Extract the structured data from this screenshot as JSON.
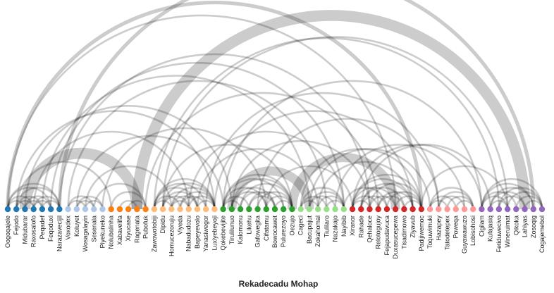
{
  "title": "Rekadecadu Mohap",
  "colors": {
    "background": "#ffffff",
    "link": "#000000",
    "groups": [
      "#1f77b4",
      "#aec7e8",
      "#ff7f0e",
      "#ffbb78",
      "#2ca02c",
      "#98df8a",
      "#d62728",
      "#ff9896",
      "#9467bd"
    ]
  },
  "chart_data": {
    "type": "arc",
    "nodes": [
      {
        "name": "Oogoqajele",
        "group": 0
      },
      {
        "name": "Fejodo",
        "group": 0
      },
      {
        "name": "Midubarar",
        "group": 0
      },
      {
        "name": "Raxosalofo",
        "group": 0
      },
      {
        "name": "Peqadef",
        "group": 0
      },
      {
        "name": "Feqoduxi",
        "group": 0
      },
      {
        "name": "Narazavecijil",
        "group": 0
      },
      {
        "name": "Voxodex",
        "group": 1
      },
      {
        "name": "Koluyet",
        "group": 1
      },
      {
        "name": "Wosagalayin",
        "group": 1
      },
      {
        "name": "Sesenala",
        "group": 1
      },
      {
        "name": "Piyekuneko",
        "group": 1
      },
      {
        "name": "Nolubalinha",
        "group": 2
      },
      {
        "name": "Xabavelifa",
        "group": 2
      },
      {
        "name": "Xiyucase",
        "group": 2
      },
      {
        "name": "Ragenata",
        "group": 2
      },
      {
        "name": "Pubofuk",
        "group": 2
      },
      {
        "name": "Zawowotobiji",
        "group": 3
      },
      {
        "name": "Dipidu",
        "group": 3
      },
      {
        "name": "Homucezoruju",
        "group": 3
      },
      {
        "name": "Viyeda",
        "group": 3
      },
      {
        "name": "Nabadudozu",
        "group": 3
      },
      {
        "name": "Bapeyevolo",
        "group": 3
      },
      {
        "name": "Yanasiwegor",
        "group": 3
      },
      {
        "name": "Luxiyebeyoji",
        "group": 3
      },
      {
        "name": "Qokebevijite",
        "group": 4
      },
      {
        "name": "Tirulilunuo",
        "group": 4
      },
      {
        "name": "Kalomonu",
        "group": 4
      },
      {
        "name": "Likehu",
        "group": 4
      },
      {
        "name": "Gafowegita",
        "group": 4
      },
      {
        "name": "Cifatamu",
        "group": 4
      },
      {
        "name": "Bowocawet",
        "group": 4
      },
      {
        "name": "Pulurezoyo",
        "group": 4
      },
      {
        "name": "Oezujo",
        "group": 4
      },
      {
        "name": "Cageci",
        "group": 5
      },
      {
        "name": "Bacupajut",
        "group": 5
      },
      {
        "name": "Zokahomal",
        "group": 5
      },
      {
        "name": "Tiulilaro",
        "group": 5
      },
      {
        "name": "Nazakajo",
        "group": 5
      },
      {
        "name": "Nayibib",
        "group": 5
      },
      {
        "name": "Xiranor",
        "group": 6
      },
      {
        "name": "Rahade",
        "group": 6
      },
      {
        "name": "Qehaloce",
        "group": 6
      },
      {
        "name": "Relotogujoy",
        "group": 6
      },
      {
        "name": "Fejapudavuca",
        "group": 6
      },
      {
        "name": "Duxasucepewa",
        "group": 6
      },
      {
        "name": "Tisadimowo",
        "group": 6
      },
      {
        "name": "Ziyavub",
        "group": 6
      },
      {
        "name": "Padijiwemoc",
        "group": 6
      },
      {
        "name": "Toquwimuki",
        "group": 7
      },
      {
        "name": "Hazapey",
        "group": 7
      },
      {
        "name": "Tatodetepex",
        "group": 7
      },
      {
        "name": "Poweqa",
        "group": 7
      },
      {
        "name": "Guyawawuzo",
        "group": 7
      },
      {
        "name": "Lobisohosi",
        "group": 7
      },
      {
        "name": "Cigilam",
        "group": 8
      },
      {
        "name": "Kufajasiq",
        "group": 8
      },
      {
        "name": "Fetiduwecivo",
        "group": 8
      },
      {
        "name": "Wineruimat",
        "group": 8
      },
      {
        "name": "Qikoka",
        "group": 8
      },
      {
        "name": "Lahiyas",
        "group": 8
      },
      {
        "name": "Zosoqig",
        "group": 8
      },
      {
        "name": "Cogajemebol",
        "group": 8
      }
    ],
    "links": [
      {
        "source": 0,
        "target": 3,
        "value": 1
      },
      {
        "source": 0,
        "target": 5,
        "value": 1
      },
      {
        "source": 1,
        "target": 4,
        "value": 1
      },
      {
        "source": 1,
        "target": 6,
        "value": 1
      },
      {
        "source": 2,
        "target": 5,
        "value": 1
      },
      {
        "source": 0,
        "target": 6,
        "value": 1
      },
      {
        "source": 3,
        "target": 6,
        "value": 1
      },
      {
        "source": 0,
        "target": 2,
        "value": 1
      },
      {
        "source": 2,
        "target": 4,
        "value": 1
      },
      {
        "source": 4,
        "target": 6,
        "value": 1
      },
      {
        "source": 1,
        "target": 3,
        "value": 1
      },
      {
        "source": 3,
        "target": 5,
        "value": 1
      },
      {
        "source": 8,
        "target": 10,
        "value": 1
      },
      {
        "source": 9,
        "target": 11,
        "value": 1
      },
      {
        "source": 7,
        "target": 10,
        "value": 1
      },
      {
        "source": 8,
        "target": 11,
        "value": 1
      },
      {
        "source": 7,
        "target": 9,
        "value": 1
      },
      {
        "source": 13,
        "target": 15,
        "value": 1
      },
      {
        "source": 12,
        "target": 16,
        "value": 1
      },
      {
        "source": 14,
        "target": 16,
        "value": 1
      },
      {
        "source": 17,
        "target": 24,
        "value": 1
      },
      {
        "source": 17,
        "target": 20,
        "value": 1
      },
      {
        "source": 18,
        "target": 22,
        "value": 1
      },
      {
        "source": 19,
        "target": 24,
        "value": 1
      },
      {
        "source": 20,
        "target": 23,
        "value": 1
      },
      {
        "source": 17,
        "target": 22,
        "value": 1
      },
      {
        "source": 18,
        "target": 21,
        "value": 1
      },
      {
        "source": 21,
        "target": 24,
        "value": 1
      },
      {
        "source": 19,
        "target": 22,
        "value": 1
      },
      {
        "source": 17,
        "target": 23,
        "value": 1
      },
      {
        "source": 18,
        "target": 24,
        "value": 1
      },
      {
        "source": 20,
        "target": 24,
        "value": 1
      },
      {
        "source": 17,
        "target": 19,
        "value": 1
      },
      {
        "source": 22,
        "target": 24,
        "value": 1
      },
      {
        "source": 19,
        "target": 21,
        "value": 1
      },
      {
        "source": 25,
        "target": 33,
        "value": 1
      },
      {
        "source": 25,
        "target": 30,
        "value": 1
      },
      {
        "source": 26,
        "target": 31,
        "value": 1
      },
      {
        "source": 27,
        "target": 33,
        "value": 1
      },
      {
        "source": 28,
        "target": 32,
        "value": 1
      },
      {
        "source": 25,
        "target": 28,
        "value": 1
      },
      {
        "source": 29,
        "target": 33,
        "value": 1
      },
      {
        "source": 26,
        "target": 30,
        "value": 1
      },
      {
        "source": 27,
        "target": 31,
        "value": 1
      },
      {
        "source": 30,
        "target": 33,
        "value": 1
      },
      {
        "source": 25,
        "target": 32,
        "value": 1
      },
      {
        "source": 26,
        "target": 33,
        "value": 1
      },
      {
        "source": 28,
        "target": 31,
        "value": 1
      },
      {
        "source": 25,
        "target": 27,
        "value": 1
      },
      {
        "source": 31,
        "target": 33,
        "value": 1
      },
      {
        "source": 34,
        "target": 39,
        "value": 1
      },
      {
        "source": 35,
        "target": 38,
        "value": 1
      },
      {
        "source": 34,
        "target": 37,
        "value": 1
      },
      {
        "source": 36,
        "target": 39,
        "value": 1
      },
      {
        "source": 35,
        "target": 39,
        "value": 1
      },
      {
        "source": 34,
        "target": 36,
        "value": 1
      },
      {
        "source": 37,
        "target": 39,
        "value": 1
      },
      {
        "source": 40,
        "target": 48,
        "value": 1
      },
      {
        "source": 40,
        "target": 45,
        "value": 1
      },
      {
        "source": 41,
        "target": 47,
        "value": 1
      },
      {
        "source": 42,
        "target": 48,
        "value": 1
      },
      {
        "source": 43,
        "target": 47,
        "value": 1
      },
      {
        "source": 40,
        "target": 43,
        "value": 1
      },
      {
        "source": 44,
        "target": 48,
        "value": 1
      },
      {
        "source": 41,
        "target": 46,
        "value": 1
      },
      {
        "source": 42,
        "target": 45,
        "value": 1
      },
      {
        "source": 45,
        "target": 48,
        "value": 1
      },
      {
        "source": 40,
        "target": 47,
        "value": 1
      },
      {
        "source": 41,
        "target": 44,
        "value": 1
      },
      {
        "source": 46,
        "target": 48,
        "value": 1
      },
      {
        "source": 40,
        "target": 42,
        "value": 1
      },
      {
        "source": 43,
        "target": 46,
        "value": 1
      },
      {
        "source": 49,
        "target": 54,
        "value": 1
      },
      {
        "source": 49,
        "target": 52,
        "value": 1
      },
      {
        "source": 50,
        "target": 54,
        "value": 1
      },
      {
        "source": 51,
        "target": 54,
        "value": 1
      },
      {
        "source": 49,
        "target": 51,
        "value": 1
      },
      {
        "source": 52,
        "target": 54,
        "value": 1
      },
      {
        "source": 50,
        "target": 53,
        "value": 1
      },
      {
        "source": 55,
        "target": 62,
        "value": 1
      },
      {
        "source": 55,
        "target": 59,
        "value": 1
      },
      {
        "source": 56,
        "target": 61,
        "value": 1
      },
      {
        "source": 57,
        "target": 62,
        "value": 1
      },
      {
        "source": 58,
        "target": 62,
        "value": 1
      },
      {
        "source": 55,
        "target": 58,
        "value": 1
      },
      {
        "source": 56,
        "target": 60,
        "value": 1
      },
      {
        "source": 59,
        "target": 62,
        "value": 1
      },
      {
        "source": 57,
        "target": 60,
        "value": 1
      },
      {
        "source": 55,
        "target": 61,
        "value": 1
      },
      {
        "source": 60,
        "target": 62,
        "value": 1
      },
      {
        "source": 56,
        "target": 58,
        "value": 1
      },
      {
        "source": 0,
        "target": 48,
        "value": 2
      },
      {
        "source": 6,
        "target": 61,
        "value": 2
      },
      {
        "source": 1,
        "target": 24,
        "value": 1
      },
      {
        "source": 2,
        "target": 26,
        "value": 1
      },
      {
        "source": 3,
        "target": 21,
        "value": 1
      },
      {
        "source": 4,
        "target": 35,
        "value": 1
      },
      {
        "source": 5,
        "target": 39,
        "value": 1
      },
      {
        "source": 0,
        "target": 45,
        "value": 1
      },
      {
        "source": 1,
        "target": 12,
        "value": 1
      },
      {
        "source": 2,
        "target": 15,
        "value": 6
      },
      {
        "source": 6,
        "target": 42,
        "value": 1
      },
      {
        "source": 7,
        "target": 37,
        "value": 1
      },
      {
        "source": 8,
        "target": 25,
        "value": 1
      },
      {
        "source": 9,
        "target": 19,
        "value": 1
      },
      {
        "source": 10,
        "target": 16,
        "value": 1
      },
      {
        "source": 11,
        "target": 30,
        "value": 1
      },
      {
        "source": 15,
        "target": 60,
        "value": 6
      },
      {
        "source": 16,
        "target": 43,
        "value": 1
      },
      {
        "source": 17,
        "target": 57,
        "value": 1
      },
      {
        "source": 21,
        "target": 39,
        "value": 1
      },
      {
        "source": 22,
        "target": 36,
        "value": 1
      },
      {
        "source": 24,
        "target": 47,
        "value": 1
      },
      {
        "source": 18,
        "target": 33,
        "value": 1
      },
      {
        "source": 23,
        "target": 50,
        "value": 1
      },
      {
        "source": 18,
        "target": 58,
        "value": 1
      },
      {
        "source": 25,
        "target": 55,
        "value": 1
      },
      {
        "source": 26,
        "target": 35,
        "value": 5
      },
      {
        "source": 26,
        "target": 42,
        "value": 1
      },
      {
        "source": 30,
        "target": 40,
        "value": 1
      },
      {
        "source": 29,
        "target": 50,
        "value": 1
      },
      {
        "source": 33,
        "target": 45,
        "value": 5
      },
      {
        "source": 34,
        "target": 48,
        "value": 1
      },
      {
        "source": 36,
        "target": 47,
        "value": 1
      },
      {
        "source": 35,
        "target": 49,
        "value": 1
      },
      {
        "source": 38,
        "target": 53,
        "value": 1
      },
      {
        "source": 39,
        "target": 44,
        "value": 1
      },
      {
        "source": 40,
        "target": 55,
        "value": 1
      },
      {
        "source": 41,
        "target": 56,
        "value": 1
      },
      {
        "source": 48,
        "target": 58,
        "value": 1
      }
    ]
  }
}
